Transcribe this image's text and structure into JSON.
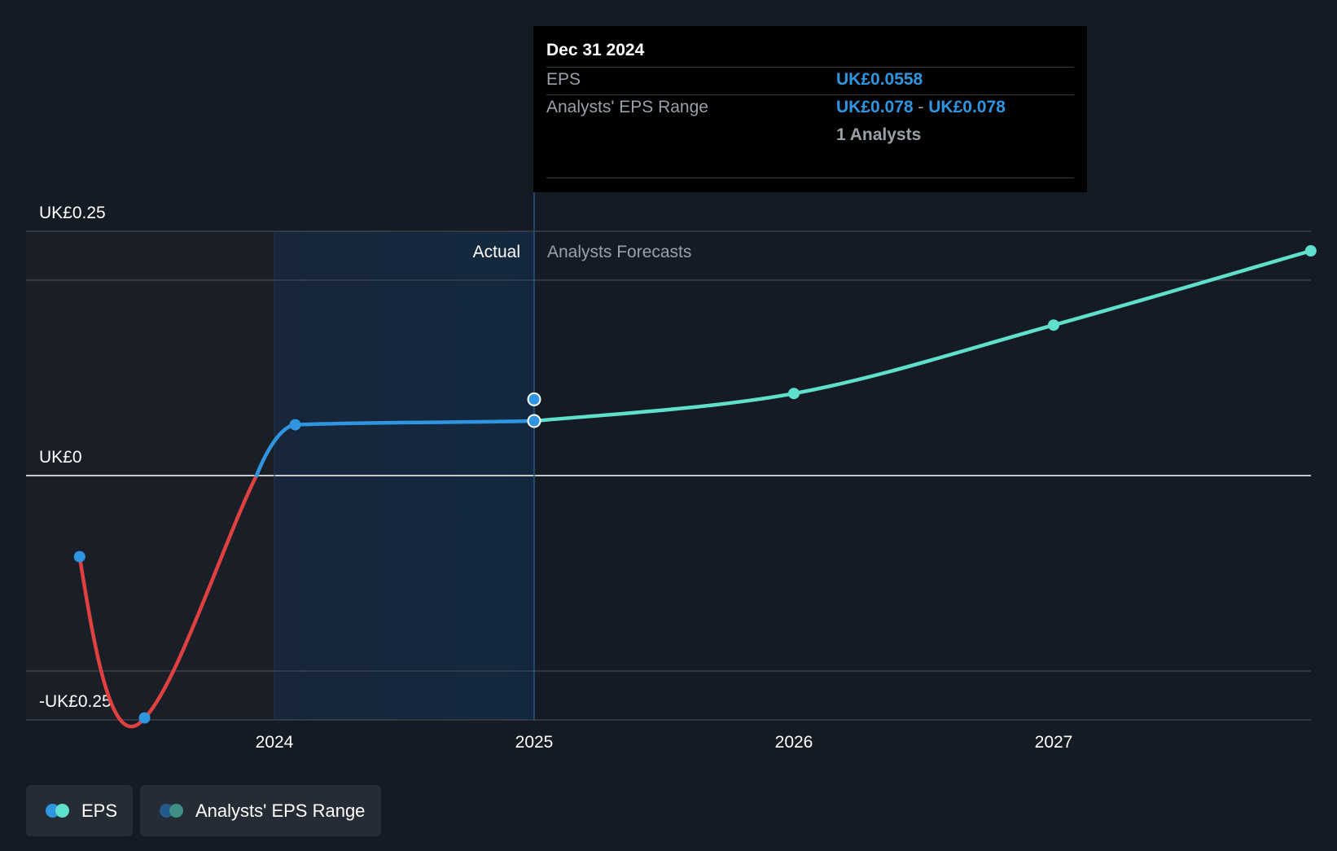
{
  "chart_data": {
    "type": "line",
    "title": "",
    "xlabel": "",
    "ylabel": "",
    "y_axis_labels": [
      "UK£0.25",
      "UK£0",
      "-UK£0.25"
    ],
    "x_ticks": [
      "2024",
      "2025",
      "2026",
      "2027"
    ],
    "ylim": [
      -0.25,
      0.25
    ],
    "xlim": [
      2023.0,
      2027.95
    ],
    "region_labels": {
      "actual": "Actual",
      "forecast": "Analysts Forecasts"
    },
    "series": [
      {
        "name": "EPS",
        "segment": "actual",
        "points": [
          {
            "x": 2023.25,
            "y": -0.083
          },
          {
            "x": 2023.5,
            "y": -0.248
          },
          {
            "x": 2024.08,
            "y": 0.052
          },
          {
            "x": 2025.0,
            "y": 0.0558
          }
        ]
      },
      {
        "name": "EPS",
        "segment": "forecast",
        "points": [
          {
            "x": 2025.0,
            "y": 0.0558
          },
          {
            "x": 2026.0,
            "y": 0.084
          },
          {
            "x": 2027.0,
            "y": 0.154
          },
          {
            "x": 2027.99,
            "y": 0.23
          }
        ]
      },
      {
        "name": "Analysts' EPS Range",
        "points": [
          {
            "x": 2025.0,
            "low": 0.078,
            "high": 0.078
          }
        ]
      }
    ],
    "colors": {
      "eps_negative": "#e04040",
      "eps_actual": "#2f95e0",
      "eps_forecast": "#5fe0cc",
      "axis_zero": "#ffffff",
      "grid": "#3a414b"
    },
    "grid": true,
    "legend_position": "bottom-left"
  },
  "tooltip": {
    "date": "Dec 31 2024",
    "eps_label": "EPS",
    "eps_value": "UK£0.0558",
    "range_label": "Analysts' EPS Range",
    "range_low": "UK£0.078",
    "range_sep": "-",
    "range_high": "UK£0.078",
    "analysts": "1 Analysts"
  },
  "legend": {
    "eps_label": "EPS",
    "range_label": "Analysts' EPS Range"
  }
}
